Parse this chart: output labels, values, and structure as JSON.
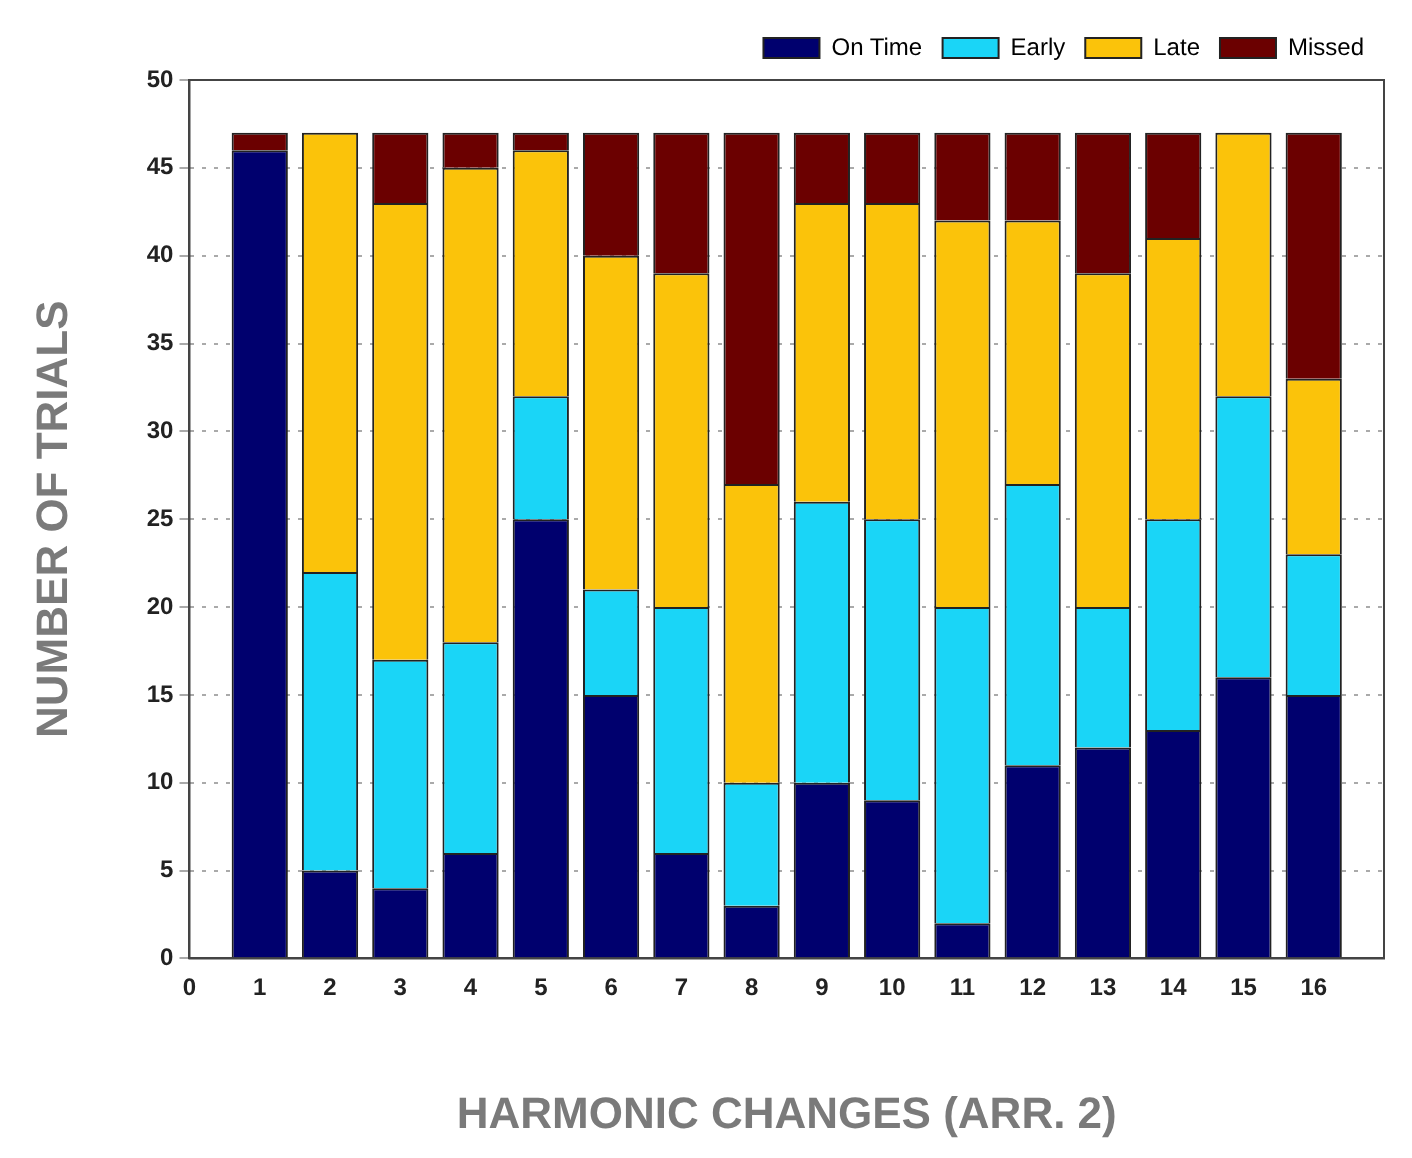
{
  "chart_data": {
    "type": "bar",
    "stacked": true,
    "xlabel": "HARMONIC CHANGES (ARR. 2)",
    "ylabel": "NUMBER OF TRIALS",
    "x": [
      1,
      2,
      3,
      4,
      5,
      6,
      7,
      8,
      9,
      10,
      11,
      12,
      13,
      14,
      15,
      16
    ],
    "xlim": [
      0,
      17
    ],
    "xticks": [
      0,
      1,
      2,
      3,
      4,
      5,
      6,
      7,
      8,
      9,
      10,
      11,
      12,
      13,
      14,
      15,
      16
    ],
    "ylim": [
      0,
      50
    ],
    "yticks": [
      0,
      5,
      10,
      15,
      20,
      25,
      30,
      35,
      40,
      45,
      50
    ],
    "grid": "y",
    "legend": "top right",
    "series": [
      {
        "name": "On Time",
        "color": "#00006e",
        "values": [
          46,
          5,
          4,
          6,
          25,
          15,
          6,
          3,
          10,
          9,
          2,
          11,
          12,
          13,
          16,
          15
        ]
      },
      {
        "name": "Early",
        "color": "#1ad5f7",
        "values": [
          0,
          17,
          13,
          12,
          7,
          6,
          14,
          7,
          16,
          16,
          18,
          16,
          8,
          12,
          16,
          8
        ]
      },
      {
        "name": "Late",
        "color": "#fbc30a",
        "values": [
          0,
          25,
          26,
          27,
          14,
          19,
          19,
          17,
          17,
          18,
          22,
          15,
          19,
          16,
          15,
          10
        ]
      },
      {
        "name": "Missed",
        "color": "#6b0000",
        "values": [
          1,
          0,
          4,
          2,
          1,
          7,
          8,
          20,
          4,
          4,
          5,
          5,
          8,
          6,
          null,
          14
        ]
      }
    ]
  }
}
